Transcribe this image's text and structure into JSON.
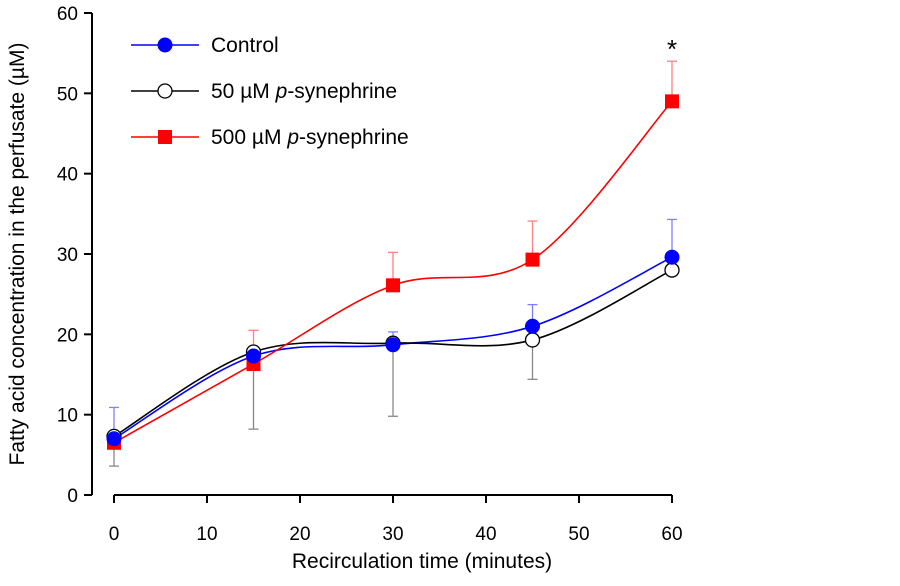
{
  "chart_data": {
    "type": "line",
    "title": "",
    "xlabel": "Recirculation time (minutes)",
    "ylabel": "Fatty acid concentration in the perfusate (µM)",
    "xlim": [
      0,
      60
    ],
    "ylim": [
      0,
      60
    ],
    "xticks": [
      0,
      10,
      20,
      30,
      40,
      50,
      60
    ],
    "yticks": [
      0,
      10,
      20,
      30,
      40,
      50,
      60
    ],
    "x_tick_labels": [
      "0",
      "10",
      "20",
      "30",
      "40",
      "50",
      "60"
    ],
    "y_tick_labels": [
      "0",
      "10",
      "20",
      "30",
      "40",
      "50",
      "60"
    ],
    "x": [
      0,
      15,
      30,
      45,
      60
    ],
    "grid": false,
    "legend_position": "top-left",
    "series": [
      {
        "name": "Control",
        "name_prefix": "",
        "name_italic": "",
        "name_suffix": "Control",
        "marker": "filled-circle",
        "color": "#0000ff",
        "values": [
          7.0,
          17.3,
          18.7,
          21.0,
          29.6
        ],
        "error_up": [
          3.9,
          0,
          1.6,
          2.7,
          4.7
        ],
        "error_down": [
          0,
          0,
          0,
          0,
          0
        ]
      },
      {
        "name": "50 µM p-synephrine",
        "name_prefix": "50 µM ",
        "name_italic": "p",
        "name_suffix": "-synephrine",
        "marker": "open-circle",
        "color": "#000000",
        "values": [
          7.3,
          17.8,
          18.9,
          19.3,
          28.0
        ],
        "error_up": [
          0,
          0,
          0,
          0,
          0
        ],
        "error_down": [
          3.7,
          9.6,
          9.1,
          4.9,
          0
        ]
      },
      {
        "name": "500 µM p-synephrine",
        "name_prefix": "500 µM ",
        "name_italic": "p",
        "name_suffix": "-synephrine",
        "marker": "filled-square",
        "color": "#ff0000",
        "values": [
          6.5,
          16.3,
          26.1,
          29.3,
          49.0
        ],
        "error_up": [
          0,
          4.2,
          4.1,
          4.8,
          5.0
        ],
        "error_down": [
          0,
          0,
          0,
          0,
          0
        ]
      }
    ],
    "annotations": [
      {
        "text": "*",
        "x": 60,
        "y": 55.5
      }
    ]
  }
}
